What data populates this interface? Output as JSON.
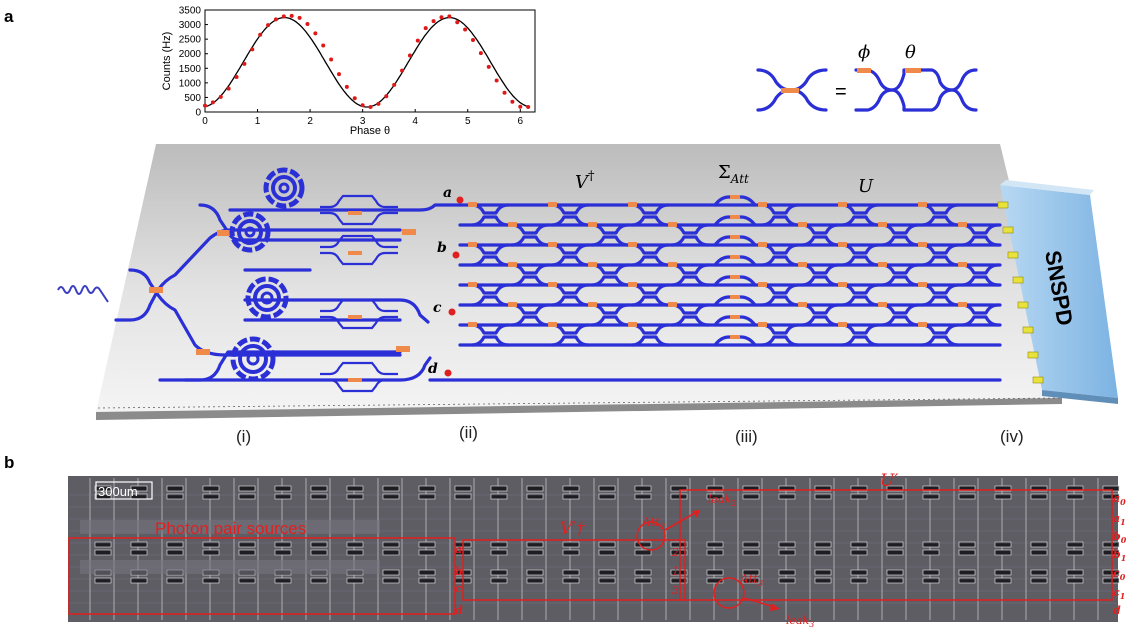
{
  "panels": {
    "a_label": "a",
    "b_label": "b"
  },
  "chart_data": {
    "type": "scatter",
    "xlabel": "Phase θ",
    "ylabel": "Counts (Hz)",
    "xlim": [
      0,
      6.28
    ],
    "ylim": [
      0,
      3500
    ],
    "xticks": [
      "0",
      "1",
      "2",
      "3",
      "4",
      "5",
      "6"
    ],
    "yticks": [
      "0",
      "500",
      "1000",
      "1500",
      "2000",
      "2500",
      "3000",
      "3500"
    ],
    "series": [
      {
        "kind": "points",
        "x": [
          0.0,
          0.15,
          0.3,
          0.45,
          0.6,
          0.75,
          0.9,
          1.05,
          1.2,
          1.35,
          1.5,
          1.65,
          1.8,
          1.95,
          2.1,
          2.25,
          2.4,
          2.55,
          2.7,
          2.85,
          3.0,
          3.15,
          3.3,
          3.45,
          3.6,
          3.75,
          3.9,
          4.05,
          4.2,
          4.35,
          4.5,
          4.65,
          4.8,
          4.95,
          5.1,
          5.25,
          5.4,
          5.55,
          5.7,
          5.85,
          6.0,
          6.15
        ],
        "y": [
          220,
          330,
          520,
          800,
          1200,
          1650,
          2150,
          2650,
          2980,
          3180,
          3280,
          3300,
          3230,
          3020,
          2700,
          2280,
          1800,
          1300,
          860,
          470,
          230,
          170,
          280,
          540,
          930,
          1420,
          1940,
          2450,
          2880,
          3120,
          3250,
          3280,
          3080,
          2830,
          2470,
          2020,
          1550,
          1080,
          660,
          350,
          180,
          170
        ]
      },
      {
        "kind": "fit",
        "x": [
          0.0,
          0.3,
          0.6,
          0.9,
          1.2,
          1.5,
          1.8,
          2.1,
          2.4,
          2.7,
          3.0,
          3.3,
          3.6,
          3.9,
          4.2,
          4.5,
          4.8,
          5.1,
          5.4,
          5.7,
          6.0,
          6.2
        ],
        "y": [
          190,
          450,
          1090,
          1960,
          2760,
          3230,
          3200,
          2660,
          1840,
          990,
          390,
          170,
          450,
          1140,
          2040,
          2840,
          3240,
          3190,
          2590,
          1740,
          920,
          450
        ]
      }
    ]
  },
  "diagram": {
    "phi_label": "ϕ",
    "theta_label": "θ",
    "equals": "=",
    "v_dagger": "V",
    "v_dagger_sup": "†",
    "sigma_att": "Σ",
    "sigma_att_sub": "Att",
    "u_label": "U",
    "nodes": [
      "a",
      "b",
      "c",
      "d"
    ],
    "snspd": "SNSPD",
    "stages": [
      "(i)",
      "(ii)",
      "(iii)",
      "(iv)"
    ]
  },
  "micrograph": {
    "scale_bar": "300um",
    "sources_label": "Photon pair sources",
    "v_prime": "V′†",
    "u_prime": "U′",
    "att2": "Att",
    "att2_sub": "2",
    "att3": "Att",
    "att3_sub": "3",
    "leak2": "leak",
    "leak2_sub": "2",
    "leak3": "leak",
    "leak3_sub": "3",
    "left_ports": [
      "a",
      "b",
      "c",
      "d"
    ],
    "mid_ports": [
      "2",
      "1",
      "3"
    ],
    "right_ports": [
      "a0",
      "a1",
      "b0",
      "b1",
      "c0",
      "c1",
      "d"
    ]
  },
  "colors": {
    "waveguide": "#2a2fd6",
    "heater": "#f08a4b",
    "annotation_red": "#e02020",
    "snspd_blue": "#9cc8ec"
  }
}
